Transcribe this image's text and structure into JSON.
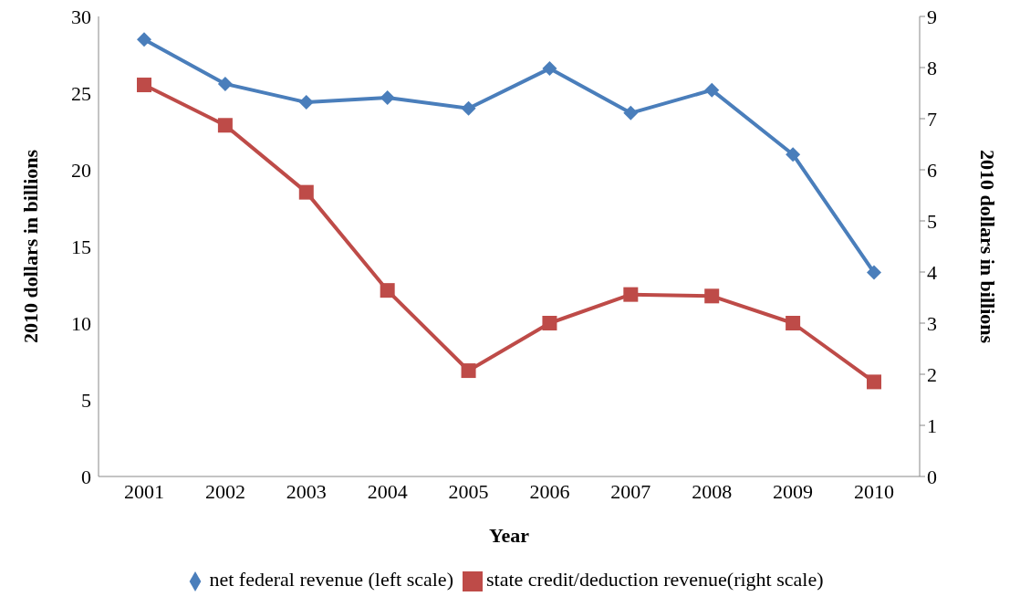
{
  "chart_data": {
    "type": "line",
    "xlabel": "Year",
    "ylabel": "2010 dollars in billions",
    "y2label": "2010 dollars in billions",
    "categories": [
      "2001",
      "2002",
      "2003",
      "2004",
      "2005",
      "2006",
      "2007",
      "2008",
      "2009",
      "2010"
    ],
    "series": [
      {
        "name": "net federal revenue (left scale)",
        "color": "#4a7ebb",
        "marker": "diamond",
        "values": [
          28.5,
          25.6,
          24.4,
          24.7,
          24.0,
          26.6,
          23.7,
          25.2,
          21.0,
          13.3
        ]
      },
      {
        "name": "state credit/deduction revenue(right scale)",
        "color": "#be4b48",
        "marker": "square",
        "axis": "y2",
        "values": [
          7.66,
          6.87,
          5.56,
          3.64,
          2.07,
          3.0,
          3.56,
          3.53,
          3.0,
          1.85
        ]
      }
    ],
    "ylim": [
      0,
      30
    ],
    "yticks": [
      0,
      5,
      10,
      15,
      20,
      25,
      30
    ],
    "y2lim": [
      0,
      9
    ],
    "y2ticks": [
      0,
      1,
      2,
      3,
      4,
      5,
      6,
      7,
      8,
      9
    ],
    "legend": "bottom"
  }
}
